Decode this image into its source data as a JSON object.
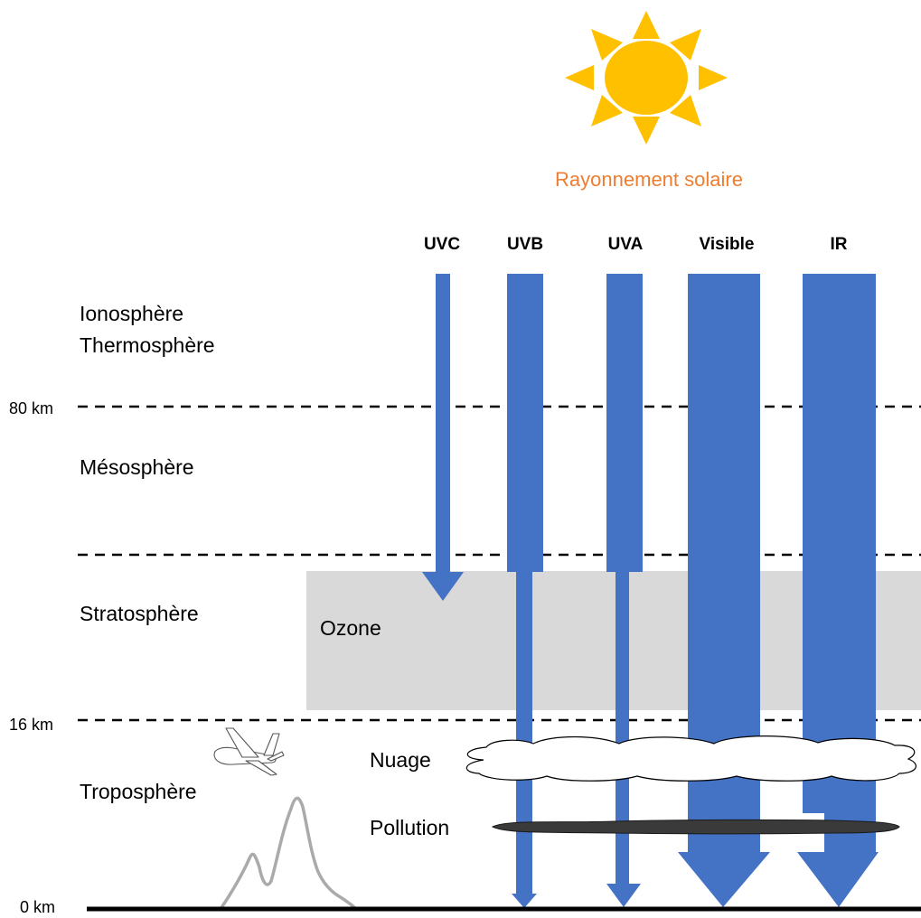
{
  "sun": {
    "label": "Rayonnement solaire",
    "label_color": "#ED7D31",
    "color": "#FFC000",
    "icon": "sun-icon"
  },
  "bands": [
    "UVC",
    "UVB",
    "UVA",
    "Visible",
    "IR"
  ],
  "layers": {
    "iono_line1": "Ionosphère",
    "iono_line2": "Thermosphère",
    "meso": "Mésosphère",
    "strato": "Stratosphère",
    "tropo": "Troposphère"
  },
  "altitudes": {
    "km80": "80 km",
    "km16": "16 km",
    "km0": "0 km"
  },
  "ozone": {
    "label": "Ozone",
    "color": "#D9D9D9"
  },
  "cloud": {
    "label": "Nuage",
    "icon": "cloud-icon"
  },
  "pollution": {
    "label": "Pollution",
    "color": "#3a3a3a"
  },
  "beam_color": "#4472C4",
  "icons": {
    "plane": "airplane-icon",
    "mountain": "mountain-icon"
  }
}
